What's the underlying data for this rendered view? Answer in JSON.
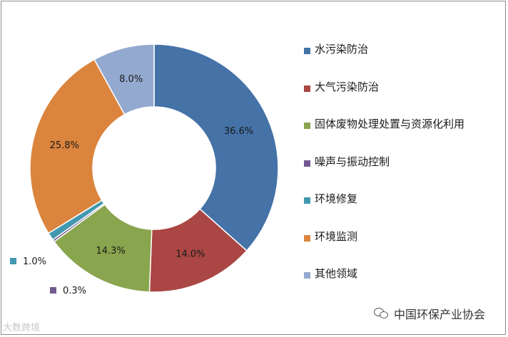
{
  "chart_data": {
    "type": "pie",
    "variant": "donut",
    "title": "",
    "legend_position": "right",
    "slices": [
      {
        "name": "水污染防治",
        "value": 36.6,
        "label": "36.6%",
        "color": "#4572A7"
      },
      {
        "name": "大气污染防治",
        "value": 14.0,
        "label": "14.0%",
        "color": "#AA4643"
      },
      {
        "name": "固体废物处理处置与资源化利用",
        "value": 14.3,
        "label": "14.3%",
        "color": "#89A54E"
      },
      {
        "name": "噪声与振动控制",
        "value": 0.3,
        "label": "0.3%",
        "color": "#71588F"
      },
      {
        "name": "环境修复",
        "value": 1.0,
        "label": "1.0%",
        "color": "#4198AF"
      },
      {
        "name": "环境监测",
        "value": 25.8,
        "label": "25.8%",
        "color": "#DB843D"
      },
      {
        "name": "其他领域",
        "value": 8.0,
        "label": "8.0%",
        "color": "#93A9CF"
      }
    ]
  },
  "watermarks": {
    "left": "大数跨境",
    "right": "中国环保产业协会",
    "right_icon": "wechat-icon"
  }
}
